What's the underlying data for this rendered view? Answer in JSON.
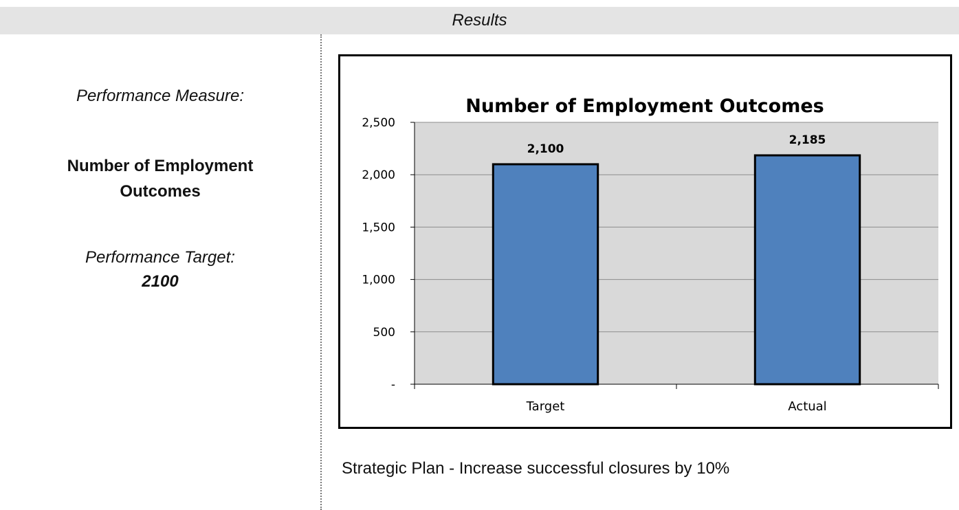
{
  "header": {
    "title": "Results"
  },
  "left_panel": {
    "measure_label": "Performance Measure:",
    "measure_value": "Number of Employment Outcomes",
    "target_label": "Performance Target:",
    "target_value": "2100"
  },
  "chart_data": {
    "type": "bar",
    "title": "Number of Employment Outcomes",
    "categories": [
      "Target",
      "Actual"
    ],
    "values": [
      2100,
      2185
    ],
    "data_labels": [
      "2,100",
      "2,185"
    ],
    "ylim": [
      0,
      2500
    ],
    "yticks": [
      0,
      500,
      1000,
      1500,
      2000,
      2500
    ],
    "ytick_labels": [
      "-",
      "500",
      "1,000",
      "1,500",
      "2,000",
      "2,500"
    ],
    "xlabel": "",
    "ylabel": "",
    "grid": true,
    "legend": "none",
    "colors": {
      "bar": "#4f81bd",
      "bar_border": "#000000",
      "plot_bg": "#d9d9d9",
      "grid": "#8c8c8c"
    }
  },
  "footer": {
    "strategic_plan": "Strategic Plan - Increase successful closures by 10%"
  }
}
